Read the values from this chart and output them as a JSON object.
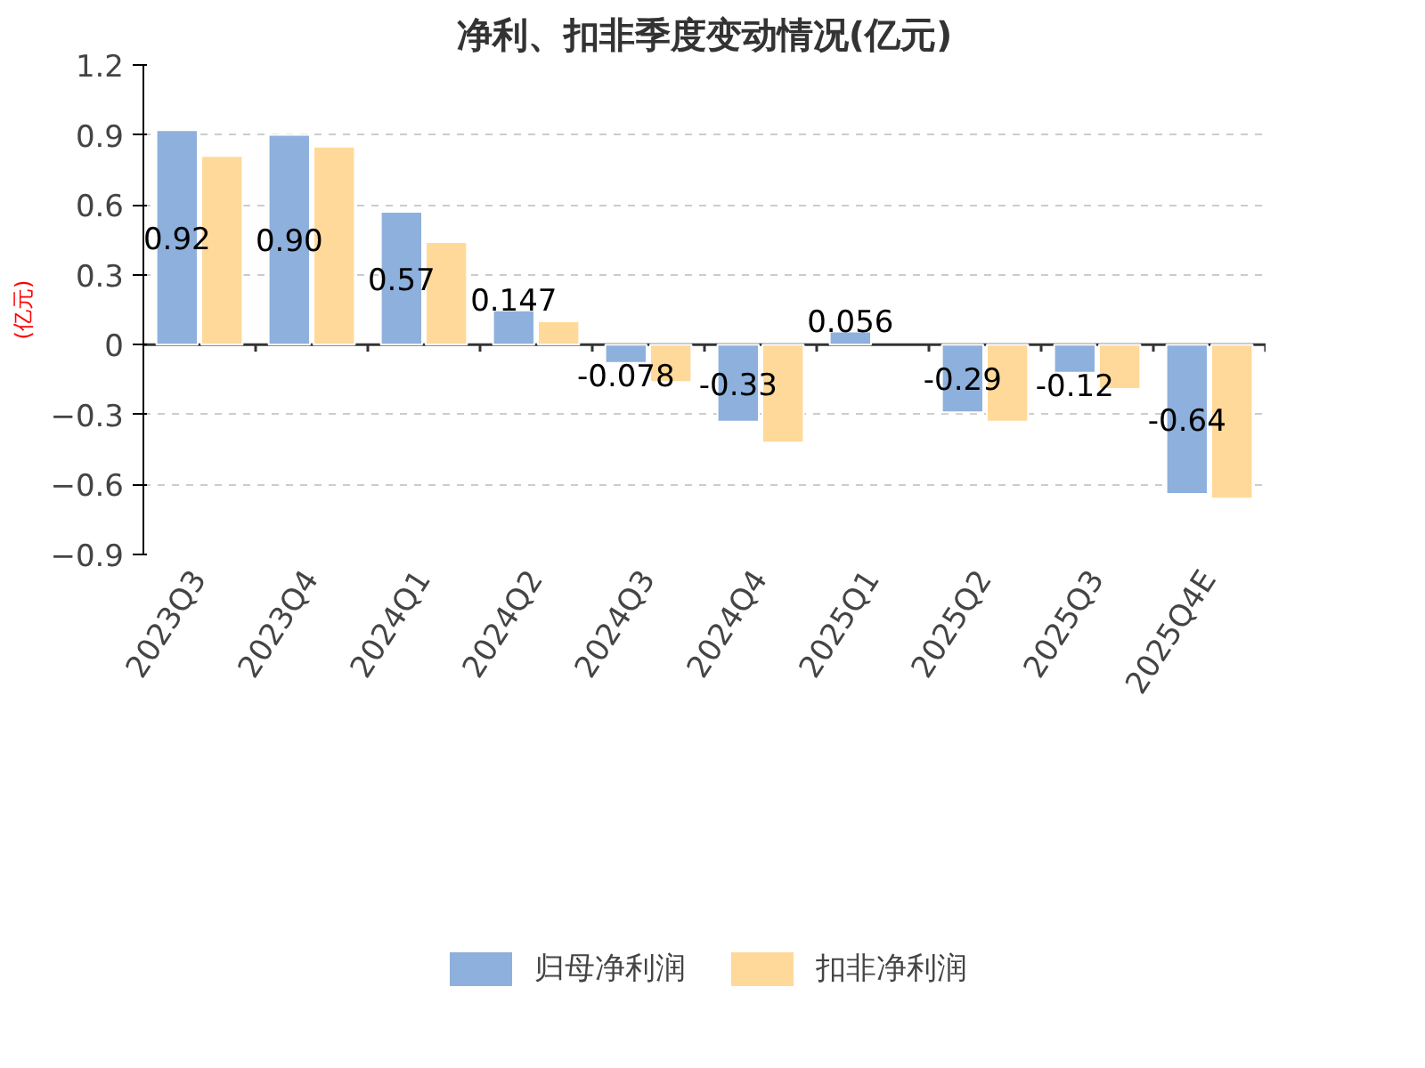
{
  "chart_data": {
    "type": "bar",
    "title": "净利、扣非季度变动情况(亿元)",
    "ylabel": "(亿元)",
    "categories": [
      "2023Q3",
      "2023Q4",
      "2024Q1",
      "2024Q2",
      "2024Q3",
      "2024Q4",
      "2025Q1",
      "2025Q2",
      "2025Q3",
      "2025Q4E"
    ],
    "series": [
      {
        "name": "归母净利润",
        "color": "#8eb0dc",
        "values": [
          0.92,
          0.9,
          0.57,
          0.147,
          -0.078,
          -0.33,
          0.056,
          -0.29,
          -0.12,
          -0.64
        ],
        "value_labels": [
          "0.92",
          "0.90",
          "0.57",
          "0.147",
          "-0.078",
          "-0.33",
          "0.056",
          "-0.29",
          "-0.12",
          "-0.64"
        ]
      },
      {
        "name": "扣非净利润",
        "color": "#ffd999",
        "values": [
          0.81,
          0.85,
          0.44,
          0.1,
          -0.16,
          -0.42,
          null,
          -0.33,
          -0.19,
          -0.66
        ]
      }
    ],
    "ylim": [
      -0.9,
      1.2
    ],
    "yticks": [
      -0.9,
      -0.6,
      -0.3,
      0,
      0.3,
      0.6,
      0.9,
      1.2
    ],
    "grid": "y",
    "legend": "bottom"
  }
}
